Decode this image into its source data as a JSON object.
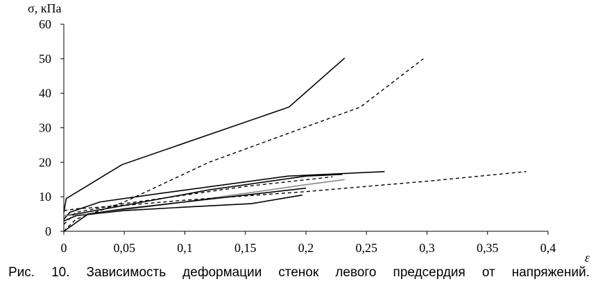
{
  "chart_data": {
    "type": "line",
    "title": "",
    "ylabel": "σ, кПа",
    "xlabel": "ε",
    "xlim": [
      0,
      0.4
    ],
    "ylim": [
      0,
      60
    ],
    "x_ticks": [
      0,
      0.05,
      0.1,
      0.15,
      0.2,
      0.25,
      0.3,
      0.35,
      0.4
    ],
    "x_tick_labels": [
      "0",
      "0,05",
      "0,1",
      "0,15",
      "0,2",
      "0,25",
      "0,3",
      "0,35",
      "0,4"
    ],
    "y_ticks": [
      0,
      10,
      20,
      30,
      40,
      50,
      60
    ],
    "y_tick_labels": [
      "0",
      "10",
      "20",
      "30",
      "40",
      "50",
      "60"
    ],
    "grid": false,
    "legend": "none",
    "series": [
      {
        "style": "solid",
        "color": "#000000",
        "x": [
          0,
          0.002,
          0.048,
          0.186,
          0.232
        ],
        "y": [
          5.5,
          9.5,
          19.3,
          36.0,
          50.2
        ]
      },
      {
        "style": "dashed",
        "color": "#000000",
        "x": [
          0,
          0.01,
          0.05,
          0.12,
          0.245,
          0.297
        ],
        "y": [
          0,
          3.5,
          8.5,
          20.0,
          36.0,
          50.0
        ]
      },
      {
        "style": "solid",
        "color": "#000000",
        "x": [
          0,
          0.005,
          0.03,
          0.08,
          0.185,
          0.265
        ],
        "y": [
          3.5,
          5.5,
          8.5,
          11.0,
          16.0,
          17.3
        ]
      },
      {
        "style": "solid",
        "color": "#000000",
        "x": [
          0,
          0.01,
          0.05,
          0.12,
          0.2,
          0.23
        ],
        "y": [
          4.5,
          5.0,
          7.5,
          12.0,
          16.0,
          16.5
        ]
      },
      {
        "style": "solid",
        "color": "#000000",
        "x": [
          0,
          0.01,
          0.05,
          0.1,
          0.155,
          0.197
        ],
        "y": [
          3.0,
          4.5,
          6.0,
          7.0,
          8.0,
          10.5
        ]
      },
      {
        "style": "solid",
        "color": "#888888",
        "x": [
          0,
          0.02,
          0.05,
          0.1,
          0.15,
          0.2,
          0.232
        ],
        "y": [
          4.5,
          5.0,
          6.3,
          8.5,
          11.0,
          13.5,
          15.0
        ]
      },
      {
        "style": "dashed",
        "color": "#000000",
        "x": [
          0,
          0.01,
          0.05,
          0.1,
          0.15,
          0.222
        ],
        "y": [
          2.0,
          5.5,
          8.0,
          10.5,
          13.0,
          15.8
        ]
      },
      {
        "style": "dashed",
        "color": "#000000",
        "x": [
          0,
          0.01,
          0.05,
          0.1,
          0.2,
          0.3,
          0.382
        ],
        "y": [
          6.0,
          6.5,
          7.5,
          9.0,
          11.5,
          14.5,
          17.3
        ]
      },
      {
        "style": "solid",
        "color": "#000000",
        "x": [
          0,
          0.02,
          0.05,
          0.1,
          0.15,
          0.2
        ],
        "y": [
          0,
          5.0,
          6.5,
          8.5,
          10.5,
          12.5
        ]
      }
    ]
  },
  "caption": "Рис. 10. Зависимость деформации стенок левого предсердия от напряжений."
}
